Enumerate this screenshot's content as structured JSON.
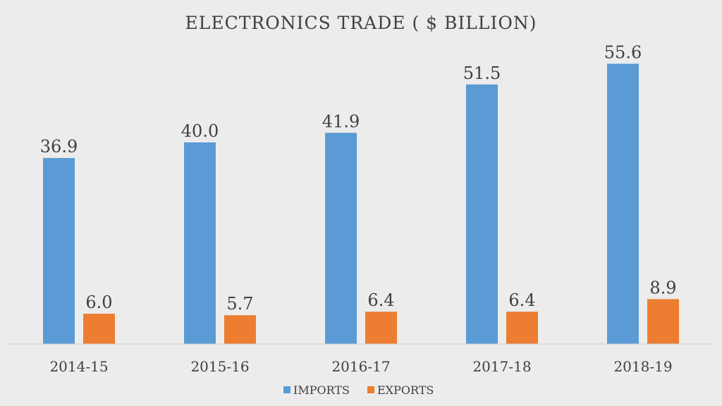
{
  "chart_data": {
    "type": "bar",
    "title": "ELECTRONICS TRADE ( $ BILLION)",
    "categories": [
      "2014-15",
      "2015-16",
      "2016-17",
      "2017-18",
      "2018-19"
    ],
    "series": [
      {
        "name": "IMPORTS",
        "color": "#5b9bd5",
        "values": [
          36.9,
          40.0,
          41.9,
          51.5,
          55.6
        ],
        "labels": [
          "36.9",
          "40.0",
          "41.9",
          "51.5",
          "55.6"
        ]
      },
      {
        "name": "EXPORTS",
        "color": "#ed7d31",
        "values": [
          6.0,
          5.7,
          6.4,
          6.4,
          8.9
        ],
        "labels": [
          "6.0",
          "5.7",
          "6.4",
          "6.4",
          "8.9"
        ]
      }
    ],
    "ylim": [
      0,
      60
    ],
    "grid": false,
    "legend": "bottom"
  }
}
